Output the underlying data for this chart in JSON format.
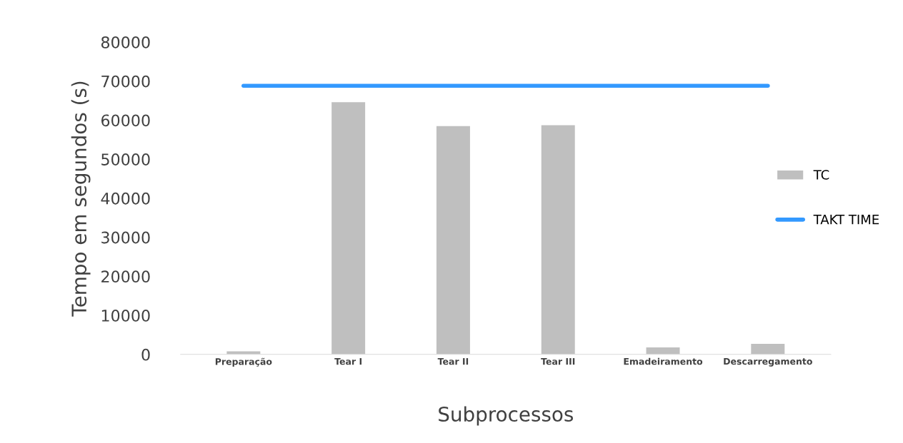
{
  "chart_data": {
    "type": "bar",
    "xlabel": "Subprocessos",
    "ylabel": "Tempo em segundos (s)",
    "categories": [
      "Preparação",
      "Tear I",
      "Tear II",
      "Tear III",
      "Emadeiramento",
      "Descarregamento"
    ],
    "series": [
      {
        "name": "TC",
        "color": "#bfbfbf",
        "values": [
          800,
          64600,
          58500,
          58700,
          1800,
          2700
        ]
      },
      {
        "name": "TAKT TIME",
        "type": "line",
        "color": "#3399ff",
        "values": [
          68800,
          68800,
          68800,
          68800,
          68800,
          68800
        ]
      }
    ],
    "ylim": [
      0,
      80000
    ],
    "yticks": [
      0,
      10000,
      20000,
      30000,
      40000,
      50000,
      60000,
      70000,
      80000
    ],
    "grid": false,
    "legend": "right"
  }
}
